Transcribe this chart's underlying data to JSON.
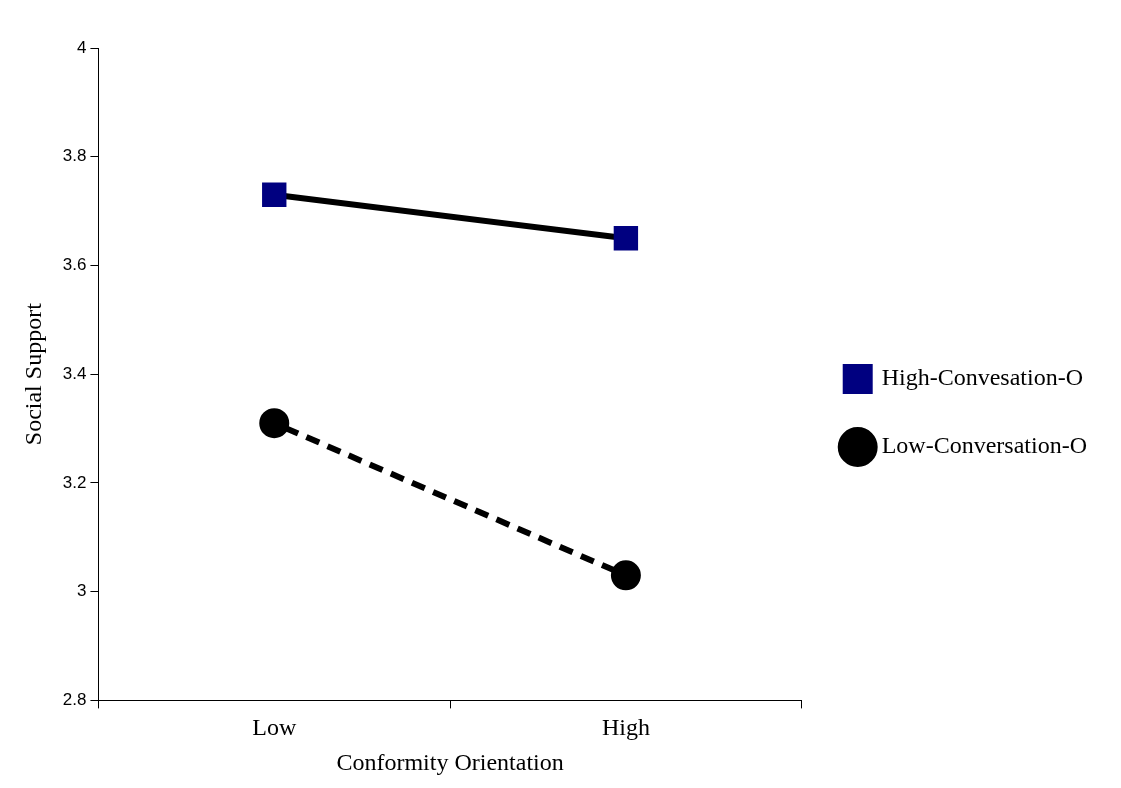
{
  "chart_data": {
    "type": "line",
    "xlabel": "Conformity Orientation",
    "ylabel": "Social Support",
    "categories": [
      "Low",
      "High"
    ],
    "ylim": [
      2.8,
      4
    ],
    "yticks": [
      2.8,
      {
        "value": 3,
        "label": "3"
      },
      3.2,
      3.4,
      3.6,
      3.8,
      {
        "value": 4,
        "label": "4"
      }
    ],
    "grid": false,
    "legend": "right",
    "series": [
      {
        "name": "High-Convesation-O",
        "color": "#000000",
        "colors": [
          "#000080",
          "#000080"
        ],
        "values": [
          3.73,
          3.65
        ],
        "marker": "square",
        "line_style": "solid"
      },
      {
        "name": "Low-Conversation-O",
        "color": "#000000",
        "values": [
          3.31,
          3.03
        ],
        "marker": "circle",
        "line_style": "dashed"
      }
    ]
  }
}
